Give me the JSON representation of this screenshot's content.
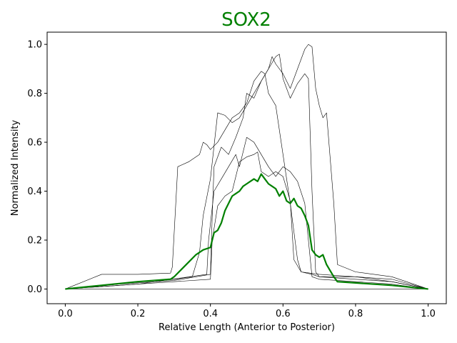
{
  "chart_data": {
    "type": "line",
    "title": "SOX2",
    "title_color": "#008000",
    "xlabel": "Relative Length (Anterior to Posterior)",
    "ylabel": "Normalized Intensity",
    "xlim": [
      -0.05,
      1.05
    ],
    "ylim": [
      -0.06,
      1.05
    ],
    "xticks": [
      0.0,
      0.2,
      0.4,
      0.6,
      0.8,
      1.0
    ],
    "xtick_labels": [
      "0.0",
      "0.2",
      "0.4",
      "0.6",
      "0.8",
      "1.0"
    ],
    "yticks": [
      0.0,
      0.2,
      0.4,
      0.6,
      0.8,
      1.0
    ],
    "ytick_labels": [
      "0.0",
      "0.2",
      "0.4",
      "0.6",
      "0.8",
      "1.0"
    ],
    "grid": false,
    "series": [
      {
        "color": "#000000",
        "line_width": 0.6,
        "x": [
          0.0,
          0.1,
          0.2,
          0.29,
          0.295,
          0.31,
          0.34,
          0.37,
          0.38,
          0.39,
          0.4,
          0.42,
          0.44,
          0.46,
          0.48,
          0.5,
          0.52,
          0.54,
          0.55,
          0.56,
          0.58,
          0.6,
          0.62,
          0.64,
          0.65,
          0.7,
          0.8,
          0.9,
          1.0
        ],
        "y": [
          0.0,
          0.06,
          0.06,
          0.065,
          0.09,
          0.5,
          0.52,
          0.55,
          0.6,
          0.59,
          0.57,
          0.6,
          0.65,
          0.7,
          0.72,
          0.76,
          0.85,
          0.89,
          0.88,
          0.8,
          0.75,
          0.55,
          0.35,
          0.12,
          0.07,
          0.06,
          0.05,
          0.04,
          0.0
        ]
      },
      {
        "color": "#000000",
        "line_width": 0.6,
        "x": [
          0.0,
          0.15,
          0.3,
          0.4,
          0.405,
          0.41,
          0.43,
          0.45,
          0.47,
          0.49,
          0.5,
          0.52,
          0.54,
          0.56,
          0.57,
          0.58,
          0.6,
          0.62,
          0.64,
          0.66,
          0.67,
          0.68,
          0.69,
          0.7,
          0.71,
          0.72,
          0.74,
          0.75,
          0.8,
          0.9,
          1.0
        ],
        "y": [
          0.0,
          0.02,
          0.035,
          0.06,
          0.3,
          0.5,
          0.58,
          0.55,
          0.62,
          0.7,
          0.8,
          0.78,
          0.85,
          0.9,
          0.95,
          0.92,
          0.88,
          0.82,
          0.9,
          0.98,
          1.0,
          0.99,
          0.82,
          0.75,
          0.7,
          0.72,
          0.35,
          0.1,
          0.07,
          0.05,
          0.0
        ]
      },
      {
        "color": "#000000",
        "line_width": 0.6,
        "x": [
          0.0,
          0.2,
          0.3,
          0.35,
          0.37,
          0.38,
          0.4,
          0.42,
          0.44,
          0.46,
          0.48,
          0.5,
          0.52,
          0.54,
          0.56,
          0.58,
          0.59,
          0.6,
          0.61,
          0.62,
          0.64,
          0.66,
          0.67,
          0.68,
          0.69,
          0.7,
          0.8,
          0.9,
          1.0
        ],
        "y": [
          0.0,
          0.03,
          0.04,
          0.05,
          0.15,
          0.3,
          0.45,
          0.72,
          0.71,
          0.68,
          0.7,
          0.75,
          0.8,
          0.85,
          0.9,
          0.95,
          0.96,
          0.86,
          0.82,
          0.78,
          0.84,
          0.88,
          0.86,
          0.4,
          0.07,
          0.05,
          0.05,
          0.03,
          0.0
        ]
      },
      {
        "color": "#000000",
        "line_width": 0.6,
        "x": [
          0.0,
          0.2,
          0.4,
          0.405,
          0.42,
          0.44,
          0.46,
          0.48,
          0.5,
          0.52,
          0.53,
          0.54,
          0.56,
          0.58,
          0.6,
          0.62,
          0.63,
          0.65,
          0.68,
          0.7,
          0.8,
          0.9,
          1.0
        ],
        "y": [
          0.0,
          0.02,
          0.04,
          0.2,
          0.34,
          0.38,
          0.4,
          0.52,
          0.54,
          0.55,
          0.56,
          0.48,
          0.46,
          0.48,
          0.46,
          0.36,
          0.12,
          0.07,
          0.06,
          0.05,
          0.04,
          0.03,
          0.0
        ]
      },
      {
        "color": "#000000",
        "line_width": 0.6,
        "x": [
          0.0,
          0.2,
          0.39,
          0.395,
          0.41,
          0.43,
          0.45,
          0.47,
          0.48,
          0.5,
          0.52,
          0.54,
          0.56,
          0.57,
          0.58,
          0.6,
          0.62,
          0.64,
          0.66,
          0.67,
          0.68,
          0.7,
          0.8,
          0.9,
          1.0
        ],
        "y": [
          0.0,
          0.02,
          0.06,
          0.2,
          0.4,
          0.45,
          0.5,
          0.55,
          0.5,
          0.62,
          0.6,
          0.55,
          0.5,
          0.48,
          0.46,
          0.5,
          0.48,
          0.44,
          0.35,
          0.2,
          0.05,
          0.04,
          0.03,
          0.02,
          0.0
        ]
      },
      {
        "color": "#008000",
        "line_width": 2.2,
        "x": [
          0.0,
          0.1,
          0.2,
          0.29,
          0.3,
          0.32,
          0.34,
          0.36,
          0.38,
          0.4,
          0.41,
          0.42,
          0.43,
          0.44,
          0.45,
          0.46,
          0.47,
          0.48,
          0.49,
          0.5,
          0.51,
          0.52,
          0.53,
          0.54,
          0.55,
          0.56,
          0.57,
          0.58,
          0.59,
          0.6,
          0.61,
          0.62,
          0.63,
          0.64,
          0.65,
          0.66,
          0.67,
          0.68,
          0.69,
          0.7,
          0.71,
          0.72,
          0.74,
          0.75,
          0.8,
          0.9,
          1.0
        ],
        "y": [
          0.0,
          0.015,
          0.03,
          0.04,
          0.05,
          0.08,
          0.11,
          0.14,
          0.16,
          0.17,
          0.23,
          0.24,
          0.27,
          0.32,
          0.35,
          0.38,
          0.39,
          0.4,
          0.42,
          0.43,
          0.44,
          0.45,
          0.44,
          0.47,
          0.45,
          0.43,
          0.42,
          0.41,
          0.38,
          0.4,
          0.36,
          0.35,
          0.37,
          0.34,
          0.33,
          0.3,
          0.26,
          0.16,
          0.14,
          0.13,
          0.14,
          0.1,
          0.05,
          0.03,
          0.025,
          0.015,
          0.0
        ]
      }
    ]
  }
}
